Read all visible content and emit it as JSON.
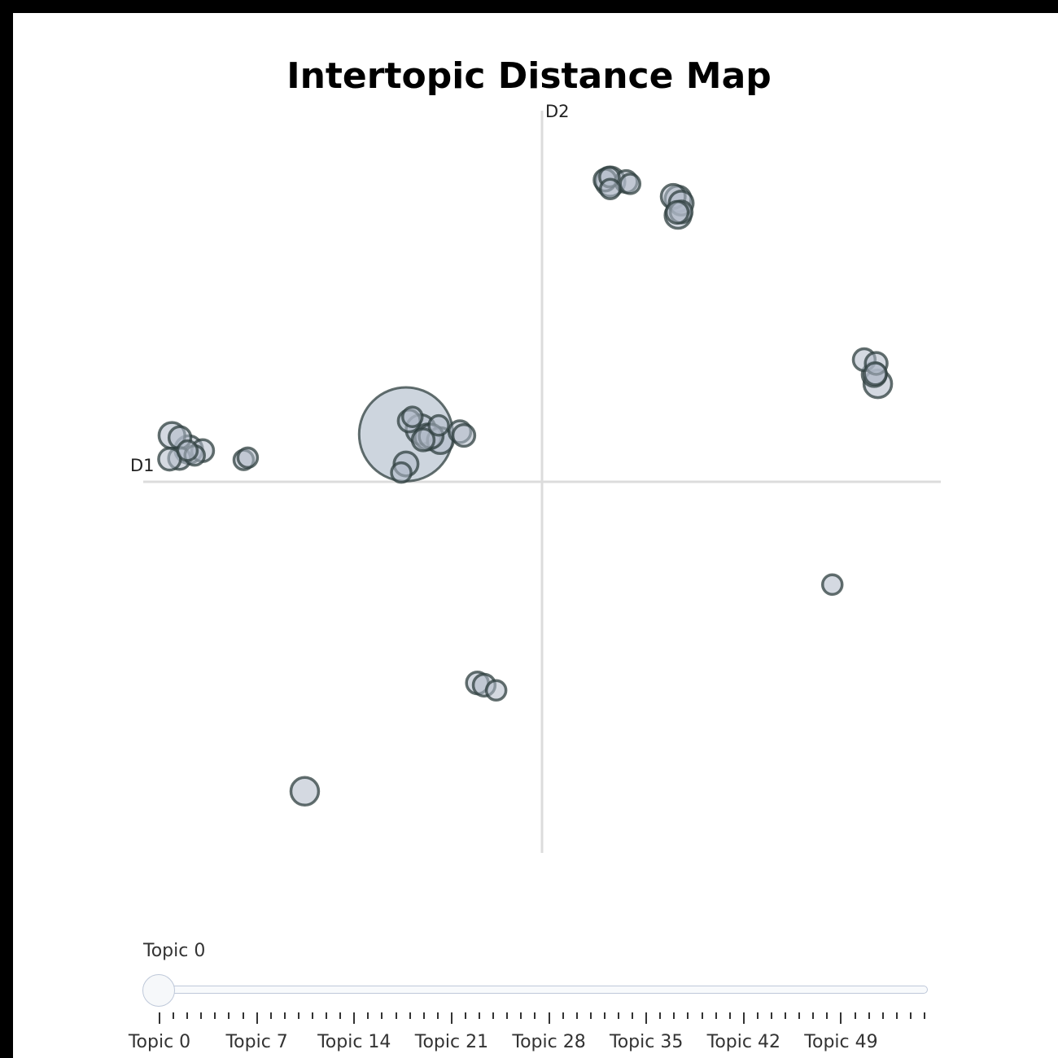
{
  "chart_data": {
    "type": "scatter",
    "title": "Intertopic Distance Map",
    "xlabel": "D1",
    "ylabel": "D2",
    "xlim": [
      -10,
      10
    ],
    "ylim": [
      -10,
      10
    ],
    "grid": false,
    "marker_fill": "#b0bac9",
    "marker_edge": "#2f3f3f",
    "highlight_fill": "#c8d0da",
    "axis_color": "#dcdcdc",
    "points": [
      {
        "x": -3.41,
        "y": 1.28,
        "size": 9.2
      },
      {
        "x": -3.33,
        "y": 1.64,
        "size": 0.5
      },
      {
        "x": -3.25,
        "y": 1.75,
        "size": 0.4
      },
      {
        "x": -3.04,
        "y": 1.41,
        "size": 0.9
      },
      {
        "x": -2.86,
        "y": 1.21,
        "size": 0.7
      },
      {
        "x": -2.55,
        "y": 1.11,
        "size": 0.7
      },
      {
        "x": -2.59,
        "y": 1.52,
        "size": 0.4
      },
      {
        "x": -2.78,
        "y": 1.23,
        "size": 0.6
      },
      {
        "x": -2.98,
        "y": 1.13,
        "size": 0.5
      },
      {
        "x": -3.41,
        "y": 0.48,
        "size": 0.6
      },
      {
        "x": -3.53,
        "y": 0.25,
        "size": 0.4
      },
      {
        "x": -2.06,
        "y": 1.35,
        "size": 0.5
      },
      {
        "x": -1.96,
        "y": 1.25,
        "size": 0.5
      },
      {
        "x": 1.71,
        "y": 8.09,
        "size": 0.9
      },
      {
        "x": 1.58,
        "y": 8.13,
        "size": 0.5
      },
      {
        "x": 1.69,
        "y": 8.21,
        "size": 0.4
      },
      {
        "x": 2.11,
        "y": 8.09,
        "size": 0.5
      },
      {
        "x": 2.21,
        "y": 8.03,
        "size": 0.4
      },
      {
        "x": 1.71,
        "y": 7.89,
        "size": 0.4
      },
      {
        "x": 3.29,
        "y": 7.69,
        "size": 0.6
      },
      {
        "x": 3.41,
        "y": 7.62,
        "size": 0.7
      },
      {
        "x": 3.49,
        "y": 7.51,
        "size": 0.6
      },
      {
        "x": 3.41,
        "y": 7.18,
        "size": 0.7
      },
      {
        "x": 3.49,
        "y": 7.27,
        "size": 0.5
      },
      {
        "x": 3.39,
        "y": 7.26,
        "size": 0.5
      },
      {
        "x": 8.08,
        "y": 3.29,
        "size": 0.5
      },
      {
        "x": 8.38,
        "y": 3.19,
        "size": 0.5
      },
      {
        "x": 8.33,
        "y": 2.89,
        "size": 0.6
      },
      {
        "x": 8.36,
        "y": 2.91,
        "size": 0.5
      },
      {
        "x": 8.42,
        "y": 2.64,
        "size": 0.8
      },
      {
        "x": -9.28,
        "y": 1.25,
        "size": 0.7
      },
      {
        "x": -9.08,
        "y": 1.19,
        "size": 0.5
      },
      {
        "x": -8.86,
        "y": 0.87,
        "size": 0.8
      },
      {
        "x": -8.51,
        "y": 0.84,
        "size": 0.5
      },
      {
        "x": -8.71,
        "y": 0.71,
        "size": 0.4
      },
      {
        "x": -8.89,
        "y": 0.84,
        "size": 0.4
      },
      {
        "x": -9.09,
        "y": 0.63,
        "size": 0.5
      },
      {
        "x": -9.34,
        "y": 0.61,
        "size": 0.5
      },
      {
        "x": -7.48,
        "y": 0.59,
        "size": 0.4
      },
      {
        "x": -7.38,
        "y": 0.65,
        "size": 0.4
      },
      {
        "x": 7.28,
        "y": -2.77,
        "size": 0.4
      },
      {
        "x": -1.62,
        "y": -5.42,
        "size": 0.5
      },
      {
        "x": -1.45,
        "y": -5.48,
        "size": 0.5
      },
      {
        "x": -1.15,
        "y": -5.62,
        "size": 0.4
      },
      {
        "x": -5.95,
        "y": -8.34,
        "size": 0.8
      }
    ]
  },
  "slider": {
    "current_label": "Topic 0",
    "tick_labels": [
      "Topic 0",
      "Topic 7",
      "Topic 14",
      "Topic 21",
      "Topic 28",
      "Topic 35",
      "Topic 42",
      "Topic 49"
    ],
    "tick_count": 56
  }
}
